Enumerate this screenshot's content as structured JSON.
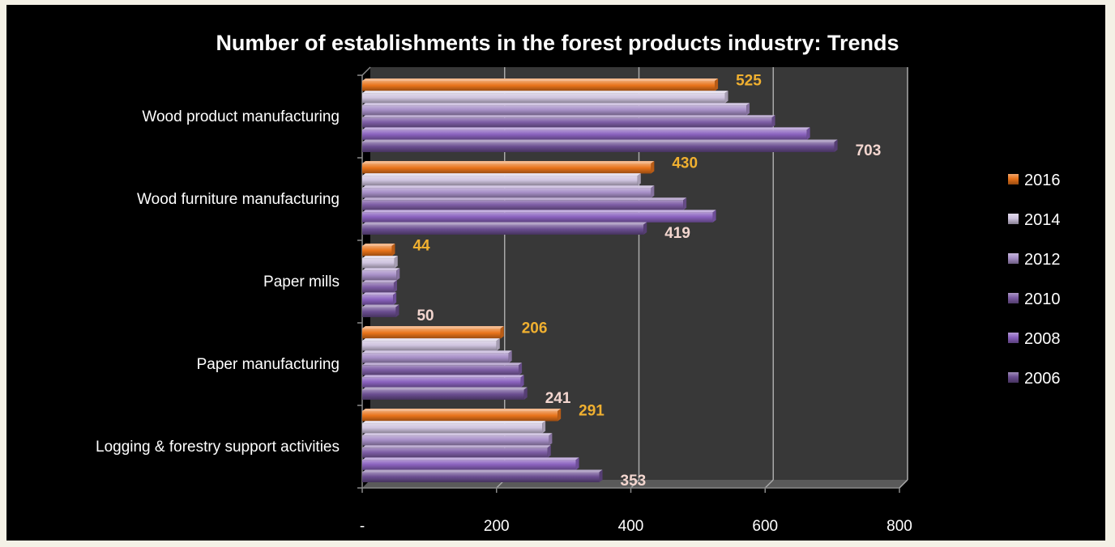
{
  "chart_data": {
    "type": "bar",
    "orientation": "horizontal",
    "title": "Number of establishments  in the forest products industry:   Trends",
    "categories": [
      "Wood product manufacturing",
      "Wood furniture manufacturing",
      "Paper mills",
      "Paper manufacturing",
      "Logging & forestry support activities"
    ],
    "series": [
      {
        "name": "2016",
        "color": "#e8731a",
        "values": [
          525,
          430,
          44,
          206,
          291
        ]
      },
      {
        "name": "2014",
        "color": "#cfc4df",
        "values": [
          540,
          410,
          48,
          200,
          268
        ]
      },
      {
        "name": "2012",
        "color": "#a78fc7",
        "values": [
          572,
          430,
          51,
          218,
          278
        ]
      },
      {
        "name": "2010",
        "color": "#7e5ea6",
        "values": [
          610,
          478,
          47,
          233,
          276
        ]
      },
      {
        "name": "2008",
        "color": "#8a62bf",
        "values": [
          662,
          522,
          46,
          236,
          318
        ]
      },
      {
        "name": "2006",
        "color": "#6b4e91",
        "values": [
          703,
          419,
          50,
          241,
          353
        ]
      }
    ],
    "data_labels": [
      {
        "category": 0,
        "series": "2016",
        "text": "525",
        "color": "#f0b030"
      },
      {
        "category": 0,
        "series": "2006",
        "text": "703",
        "color": "#f3d6cf"
      },
      {
        "category": 1,
        "series": "2016",
        "text": "430",
        "color": "#f0b030"
      },
      {
        "category": 1,
        "series": "2006",
        "text": "419",
        "color": "#f3d6cf"
      },
      {
        "category": 2,
        "series": "2016",
        "text": "44",
        "color": "#f0b030"
      },
      {
        "category": 2,
        "series": "2006",
        "text": "50",
        "color": "#f3d6cf"
      },
      {
        "category": 3,
        "series": "2016",
        "text": "206",
        "color": "#f0b030"
      },
      {
        "category": 3,
        "series": "2006",
        "text": "241",
        "color": "#f3d6cf"
      },
      {
        "category": 4,
        "series": "2016",
        "text": "291",
        "color": "#f0b030"
      },
      {
        "category": 4,
        "series": "2006",
        "text": "353",
        "color": "#f3d6cf"
      }
    ],
    "x_ticks": [
      {
        "value": 0,
        "label": "-"
      },
      {
        "value": 200,
        "label": "200"
      },
      {
        "value": 400,
        "label": "400"
      },
      {
        "value": 600,
        "label": "600"
      },
      {
        "value": 800,
        "label": "800"
      }
    ],
    "xlim": [
      0,
      800
    ],
    "grid": true,
    "legend_position": "right",
    "plot_background": "#383838",
    "style": "3d"
  }
}
